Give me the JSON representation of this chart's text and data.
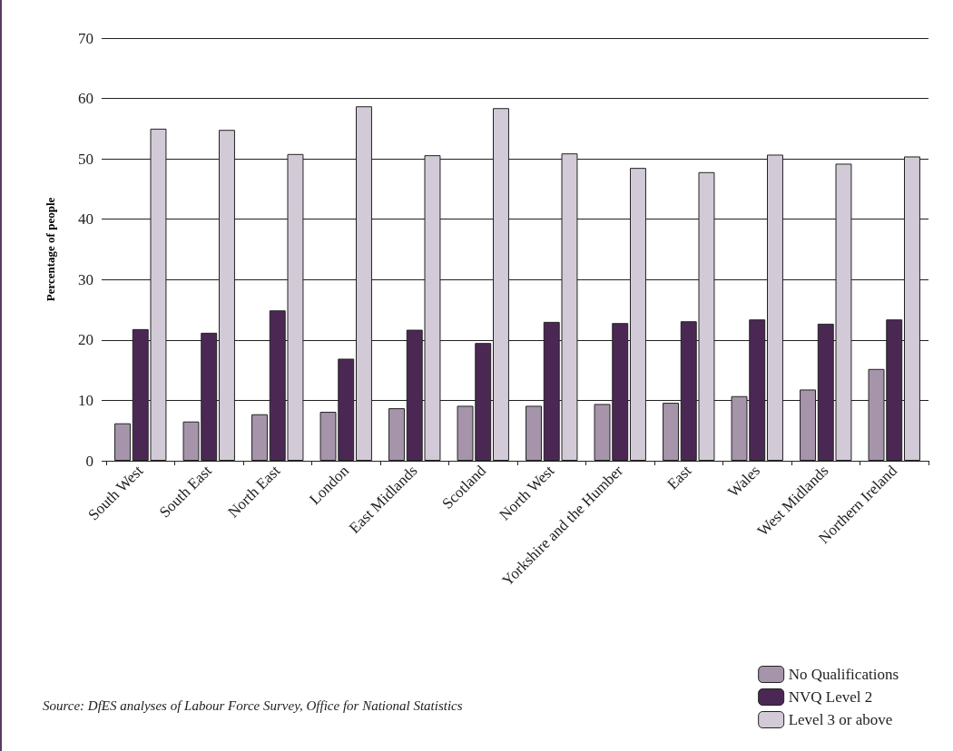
{
  "chart_data": {
    "type": "bar",
    "ylabel": "Percentage of people",
    "categories": [
      "South West",
      "South East",
      "North East",
      "London",
      "East Midlands",
      "Scotland",
      "North West",
      "Yorkshire and the Humber",
      "East",
      "Wales",
      "West Midlands",
      "Northern Ireland"
    ],
    "series": [
      {
        "name": "No Qualifications",
        "color": "#a594aa",
        "values": [
          6.2,
          6.5,
          7.7,
          8.1,
          8.7,
          9.1,
          9.1,
          9.4,
          9.6,
          10.7,
          11.8,
          15.2
        ]
      },
      {
        "name": "NVQ Level 2",
        "color": "#4b2854",
        "values": [
          21.8,
          21.2,
          24.9,
          16.9,
          21.7,
          19.5,
          23.0,
          22.8,
          23.1,
          23.4,
          22.7,
          23.4
        ]
      },
      {
        "name": "Level 3 or above",
        "color": "#d2cad6",
        "values": [
          55.0,
          54.8,
          50.8,
          58.7,
          50.6,
          58.4,
          50.9,
          48.5,
          47.8,
          50.7,
          49.2,
          50.4
        ]
      }
    ],
    "ylim": [
      0,
      70
    ],
    "yticks": [
      0,
      10,
      20,
      30,
      40,
      50,
      60,
      70
    ],
    "grid": "y",
    "legend": "bottom right",
    "annotations": [
      "Source: DfES analyses of Labour Force Survey, Office for National Statistics"
    ]
  }
}
